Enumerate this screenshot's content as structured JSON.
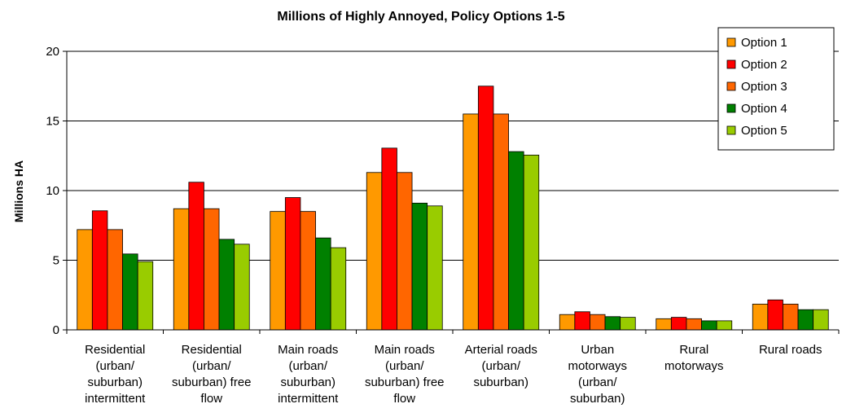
{
  "chart_data": {
    "type": "bar",
    "title": "Millions of Highly Annoyed, Policy Options 1-5",
    "ylabel": "Millions HA",
    "xlabel": "",
    "ylim": [
      0,
      20
    ],
    "yticks": [
      0,
      5,
      10,
      15,
      20
    ],
    "grid": true,
    "legend_position": "top-right",
    "categories": [
      [
        "Residential",
        "(urban/",
        "suburban)",
        "intermittent"
      ],
      [
        "Residential",
        "(urban/",
        "suburban) free",
        "flow"
      ],
      [
        "Main roads",
        "(urban/",
        "suburban)",
        "intermittent"
      ],
      [
        "Main roads",
        "(urban/",
        "suburban) free",
        "flow"
      ],
      [
        "Arterial roads",
        "(urban/",
        "suburban)"
      ],
      [
        "Urban",
        "motorways",
        "(urban/",
        "suburban)"
      ],
      [
        "Rural",
        "motorways"
      ],
      [
        "Rural roads"
      ]
    ],
    "series": [
      {
        "name": "Option 1",
        "color": "#FF9900",
        "values": [
          7.2,
          8.7,
          8.5,
          11.3,
          15.5,
          1.1,
          0.8,
          1.85
        ]
      },
      {
        "name": "Option 2",
        "color": "#FF0000",
        "values": [
          8.55,
          10.6,
          9.5,
          13.05,
          17.5,
          1.3,
          0.9,
          2.15
        ]
      },
      {
        "name": "Option 3",
        "color": "#FF6600",
        "values": [
          7.2,
          8.7,
          8.5,
          11.3,
          15.5,
          1.1,
          0.8,
          1.85
        ]
      },
      {
        "name": "Option 4",
        "color": "#008000",
        "values": [
          5.45,
          6.5,
          6.6,
          9.1,
          12.8,
          0.95,
          0.65,
          1.45
        ]
      },
      {
        "name": "Option 5",
        "color": "#99CC00",
        "values": [
          4.9,
          6.15,
          5.9,
          8.9,
          12.55,
          0.9,
          0.65,
          1.45
        ]
      }
    ]
  }
}
